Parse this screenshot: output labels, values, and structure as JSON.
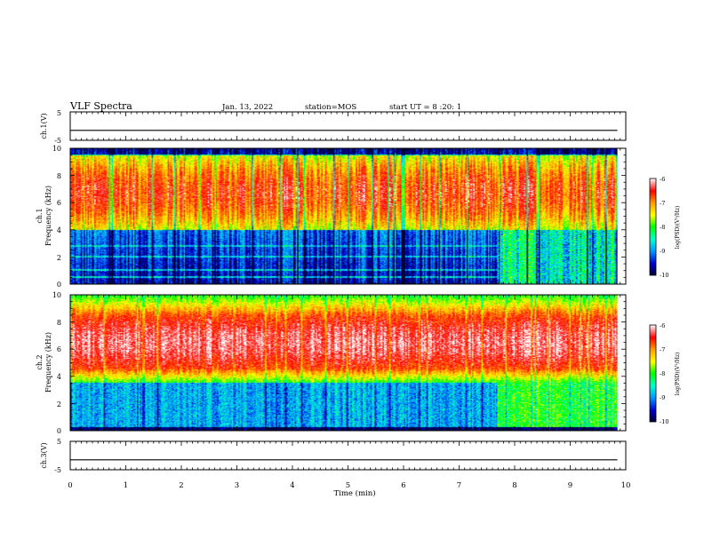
{
  "header": {
    "title": "VLF Spectra",
    "date": "Jan. 13, 2022",
    "station_label": "station=MOS",
    "start_label": "start UT =  8 :20: 1"
  },
  "chart_data": [
    {
      "type": "line",
      "name": "ch1-voltage",
      "ylabel": "ch.1(V)",
      "ylim": [
        -5,
        5
      ],
      "y_ticks": [
        "5",
        "-5"
      ],
      "x": [
        0,
        2,
        4,
        6,
        8,
        9.85
      ],
      "y": [
        -1.5,
        -1.5,
        -1.5,
        -1.5,
        -1.5,
        -1.5
      ]
    },
    {
      "type": "heatmap",
      "name": "ch1-spectrogram",
      "ylabel_line1": "ch.1",
      "ylabel_line2": "Frequency (kHz)",
      "ylim": [
        0,
        10
      ],
      "y_ticks": [
        "0",
        "2",
        "4",
        "6",
        "8",
        "10"
      ],
      "xlim": [
        0,
        10
      ],
      "data_extent_min": 9.85,
      "colorbar": {
        "label": "log(PSD)(V²/Hz)",
        "ticks": [
          "-6",
          "-7",
          "-8",
          "-9",
          "-10"
        ],
        "range": [
          -10,
          -6
        ]
      },
      "features": {
        "noise_band_khz": [
          4,
          9.5
        ],
        "quiet_below_khz": 4,
        "line_khz": [
          0.5,
          1.0,
          2.0,
          2.8
        ],
        "change_at_min": 7.7
      }
    },
    {
      "type": "heatmap",
      "name": "ch2-spectrogram",
      "ylabel_line1": "ch.2",
      "ylabel_line2": "Frequency (kHz)",
      "ylim": [
        0,
        10
      ],
      "y_ticks": [
        "0",
        "2",
        "4",
        "6",
        "8",
        "10"
      ],
      "xlim": [
        0,
        10
      ],
      "data_extent_min": 9.85,
      "colorbar": {
        "label": "log(PSD)(V²/Hz)",
        "ticks": [
          "-6",
          "-7",
          "-8",
          "-9",
          "-10"
        ],
        "range": [
          -10,
          -6
        ]
      },
      "features": {
        "strong_band_khz": [
          4.5,
          8.5
        ],
        "quiet_below_khz": 3.5,
        "change_at_min": 7.7
      }
    },
    {
      "type": "line",
      "name": "ch3-voltage",
      "ylabel": "ch.3(V)",
      "ylim": [
        -5,
        5
      ],
      "y_ticks": [
        "5",
        "-5"
      ],
      "x": [
        0,
        2,
        4,
        6,
        8,
        9.85
      ],
      "y": [
        -1.5,
        -1.5,
        -1.5,
        -1.5,
        -1.5,
        -1.5
      ]
    }
  ],
  "x_axis": {
    "label": "Time (min)",
    "ticks": [
      "0",
      "1",
      "2",
      "3",
      "4",
      "5",
      "6",
      "7",
      "8",
      "9",
      "10"
    ],
    "range": [
      0,
      10
    ]
  },
  "colors": {
    "frame": "#000000",
    "colormap": [
      "#000033",
      "#0000cc",
      "#0099ff",
      "#00ffcc",
      "#00ff00",
      "#ffff00",
      "#ff9900",
      "#ff0000",
      "#ffffff"
    ]
  }
}
